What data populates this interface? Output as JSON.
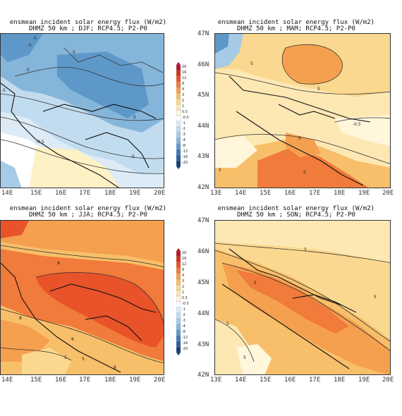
{
  "panels": [
    {
      "id": "djf",
      "title1": "ensmean incident solar energy flux (W/m2)",
      "title2": "DHMZ 50 km ; DJF; RCP4.5; P2-P0"
    },
    {
      "id": "mam",
      "title1": "ensmean incident solar energy flux (W/m2)",
      "title2": "DHMZ 50 km ; MAM; RCP4.5; P2-P0"
    },
    {
      "id": "jja",
      "title1": "ensmean incident solar energy flux (W/m2)",
      "title2": "DHMZ 50 km ; JJA; RCP4.5; P2-P0"
    },
    {
      "id": "son",
      "title1": "ensmean incident solar energy flux (W/m2)",
      "title2": "DHMZ 50 km ; SON; RCP4.5; P2-P0"
    }
  ],
  "lon_ticks": [
    "13E",
    "14E",
    "15E",
    "16E",
    "17E",
    "18E",
    "19E",
    "20E"
  ],
  "lat_ticks": [
    "47N",
    "46N",
    "45N",
    "44N",
    "43N",
    "42N"
  ],
  "colorbar": {
    "labels": [
      "20",
      "16",
      "12",
      "8",
      "4",
      "3",
      "2",
      "1",
      "0.5",
      "-0.5",
      "-1",
      "-2",
      "-3",
      "-4",
      "-8",
      "-12",
      "-16",
      "-20"
    ],
    "colors": [
      "#b2182b",
      "#d6301f",
      "#e8532a",
      "#f07b3a",
      "#f5a04f",
      "#f8bf6a",
      "#fbd88f",
      "#fde8b4",
      "#fff6dc",
      "#ffffff",
      "#dcebf6",
      "#c2dcef",
      "#a6cbe7",
      "#86b5da",
      "#5e98c9",
      "#3c7bb6",
      "#2a5f9e",
      "#173f7a"
    ]
  },
  "contour_labels": {
    "djf": [
      "-5",
      "-5",
      "-5",
      "-5",
      "-5",
      "-5",
      "-0.5",
      "-5"
    ],
    "mam": [
      "5",
      "5",
      "5",
      "5",
      "-0.5",
      "5"
    ],
    "jja": [
      "8",
      "8",
      "8",
      "5",
      "5",
      "8"
    ],
    "son": [
      "5",
      "5",
      "5",
      "5",
      "5"
    ]
  }
}
